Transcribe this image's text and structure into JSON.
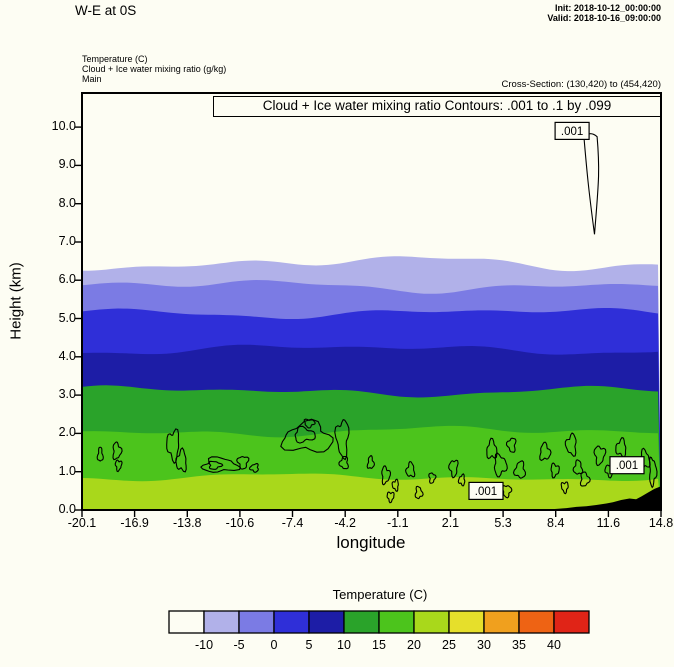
{
  "header": {
    "title": "W-E at 0S",
    "init": "Init: 2018-10-12_00:00:00",
    "valid": "Valid: 2018-10-16_09:00:00",
    "legend_lines": [
      "Temperature  (C)",
      "Cloud + Ice water mixing ratio  (g/kg)",
      "Main"
    ],
    "cross_section": "Cross-Section: (130,420) to (454,420)"
  },
  "plot": {
    "contour_title": "Cloud + Ice water mixing ratio Contours: .001 to .1 by .099",
    "xlabel": "longitude",
    "ylabel": "Height (km)",
    "x_tick_labels": [
      "-20.1",
      "-16.9",
      "-13.8",
      "-10.6",
      "-7.4",
      "-4.2",
      "-1.1",
      "2.1",
      "5.3",
      "8.4",
      "11.6",
      "14.8"
    ],
    "y_tick_labels": [
      "0.0",
      "1.0",
      "2.0",
      "3.0",
      "4.0",
      "5.0",
      "6.0",
      "7.0",
      "8.0",
      "9.0",
      "10.0"
    ]
  },
  "colorbar": {
    "title": "Temperature  (C)",
    "tick_labels": [
      "-10",
      "-5",
      "0",
      "5",
      "10",
      "15",
      "20",
      "25",
      "30",
      "35",
      "40"
    ],
    "cell_colors": [
      "#fdfdf3",
      "#b1b1e9",
      "#7b7be4",
      "#2f2fd8",
      "#1d1da6",
      "#2aa32a",
      "#4cc41c",
      "#a9d81b",
      "#e6df2b",
      "#f0a01e",
      "#ee6314",
      "#e02417"
    ]
  },
  "chart_data": {
    "type": "heatmap",
    "title": "W-E vertical cross-section at 0S: Temperature (C) filled contours with Cloud + Ice water mixing ratio (g/kg) line contours",
    "xlabel": "longitude",
    "ylabel": "Height (km)",
    "xlim": [
      -20.1,
      14.8
    ],
    "ylim": [
      0,
      10.89
    ],
    "x_ticks": [
      -20.1,
      -16.9,
      -13.8,
      -10.6,
      -7.4,
      -4.2,
      -1.1,
      2.1,
      5.3,
      8.4,
      11.6,
      14.8
    ],
    "y_ticks": [
      0,
      1,
      2,
      3,
      4,
      5,
      6,
      7,
      8,
      9,
      10
    ],
    "temperature_fill": {
      "units": "C",
      "levels": [
        -10,
        -5,
        0,
        5,
        10,
        15,
        20,
        25,
        30,
        35,
        40
      ],
      "background_color": "#fdfdf3",
      "bands": [
        {
          "range": "-10 to -5 C",
          "top_km": 6.45,
          "color": "#b1b1e9",
          "amp": 1.4
        },
        {
          "range": "-5 to 0 C",
          "top_km": 5.85,
          "color": "#7b7be4",
          "amp": 1.2
        },
        {
          "range": "0 to 5 C",
          "top_km": 5.15,
          "color": "#2f2fd8",
          "amp": 1.0
        },
        {
          "range": "5 to 10 C",
          "top_km": 4.2,
          "color": "#1d1da6",
          "amp": 1.0
        },
        {
          "range": "10 to 15 C",
          "top_km": 3.1,
          "color": "#2aa32a",
          "amp": 1.0
        },
        {
          "range": "15 to 20 C",
          "top_km": 2.05,
          "color": "#4cc41c",
          "amp": 1.0
        },
        {
          "range": "20 to 25 C",
          "top_km": 0.85,
          "color": "#a9d81b",
          "amp": 0.8
        }
      ]
    },
    "cloud_ice_contours": {
      "units": "g/kg",
      "levels": [
        0.001,
        0.1
      ],
      "labels": [
        {
          "text": ".001",
          "lon": 9.44,
          "km": 9.9
        },
        {
          "text": ".001",
          "lon": 12.75,
          "km": 1.17
        },
        {
          "text": ".001",
          "lon": 4.25,
          "km": 0.5
        }
      ],
      "plume": {
        "lon_left": 10.15,
        "lon_right": 10.95,
        "top_km": 9.75,
        "tip_km": 7.2
      },
      "blobs": [
        [
          -19.0,
          1.44,
          0.15,
          0.18
        ],
        [
          -18.0,
          1.54,
          0.24,
          0.21
        ],
        [
          -17.9,
          1.17,
          0.18,
          0.13
        ],
        [
          -14.6,
          1.7,
          0.36,
          0.37
        ],
        [
          -14.1,
          1.28,
          0.3,
          0.26
        ],
        [
          -11.8,
          1.17,
          1.02,
          0.18
        ],
        [
          -12.1,
          1.17,
          0.36,
          0.1
        ],
        [
          -10.4,
          1.25,
          0.3,
          0.16
        ],
        [
          -9.7,
          1.1,
          0.24,
          0.1
        ],
        [
          -6.5,
          1.88,
          1.45,
          0.37
        ],
        [
          -6.7,
          1.96,
          0.6,
          0.18
        ],
        [
          -6.4,
          2.27,
          0.3,
          0.1
        ],
        [
          -4.4,
          1.88,
          0.36,
          0.47
        ],
        [
          -4.3,
          1.23,
          0.24,
          0.16
        ],
        [
          -2.7,
          1.23,
          0.18,
          0.16
        ],
        [
          -1.8,
          0.91,
          0.24,
          0.21
        ],
        [
          -1.5,
          0.35,
          0.2,
          0.12
        ],
        [
          -1.2,
          0.65,
          0.18,
          0.13
        ],
        [
          -0.3,
          1.04,
          0.24,
          0.18
        ],
        [
          0.2,
          0.45,
          0.2,
          0.15
        ],
        [
          1.0,
          0.84,
          0.18,
          0.13
        ],
        [
          2.3,
          1.1,
          0.24,
          0.21
        ],
        [
          2.8,
          0.78,
          0.18,
          0.13
        ],
        [
          4.6,
          1.57,
          0.3,
          0.23
        ],
        [
          5.1,
          1.17,
          0.36,
          0.26
        ],
        [
          5.5,
          0.5,
          0.25,
          0.15
        ],
        [
          5.8,
          1.7,
          0.24,
          0.18
        ],
        [
          6.3,
          1.04,
          0.3,
          0.21
        ],
        [
          7.8,
          1.51,
          0.3,
          0.21
        ],
        [
          8.4,
          1.04,
          0.24,
          0.16
        ],
        [
          9.0,
          0.6,
          0.2,
          0.13
        ],
        [
          9.4,
          1.7,
          0.3,
          0.26
        ],
        [
          9.8,
          1.1,
          0.24,
          0.18
        ],
        [
          10.2,
          0.8,
          0.25,
          0.18
        ],
        [
          11.1,
          1.44,
          0.3,
          0.23
        ],
        [
          11.7,
          1.04,
          0.24,
          0.16
        ],
        [
          12.4,
          1.62,
          0.3,
          0.21
        ],
        [
          13.8,
          1.31,
          0.3,
          0.23
        ],
        [
          14.3,
          1.0,
          0.2,
          0.35
        ]
      ]
    },
    "terrain_profile_lon_km": [
      [
        8.2,
        0.02
      ],
      [
        9.1,
        0.05
      ],
      [
        9.7,
        0.08
      ],
      [
        10.3,
        0.1
      ],
      [
        10.9,
        0.13
      ],
      [
        11.5,
        0.17
      ],
      [
        11.9,
        0.2
      ],
      [
        12.4,
        0.26
      ],
      [
        12.9,
        0.3
      ],
      [
        13.3,
        0.28
      ],
      [
        13.6,
        0.35
      ],
      [
        14.0,
        0.45
      ],
      [
        14.4,
        0.55
      ],
      [
        14.8,
        0.62
      ]
    ]
  }
}
